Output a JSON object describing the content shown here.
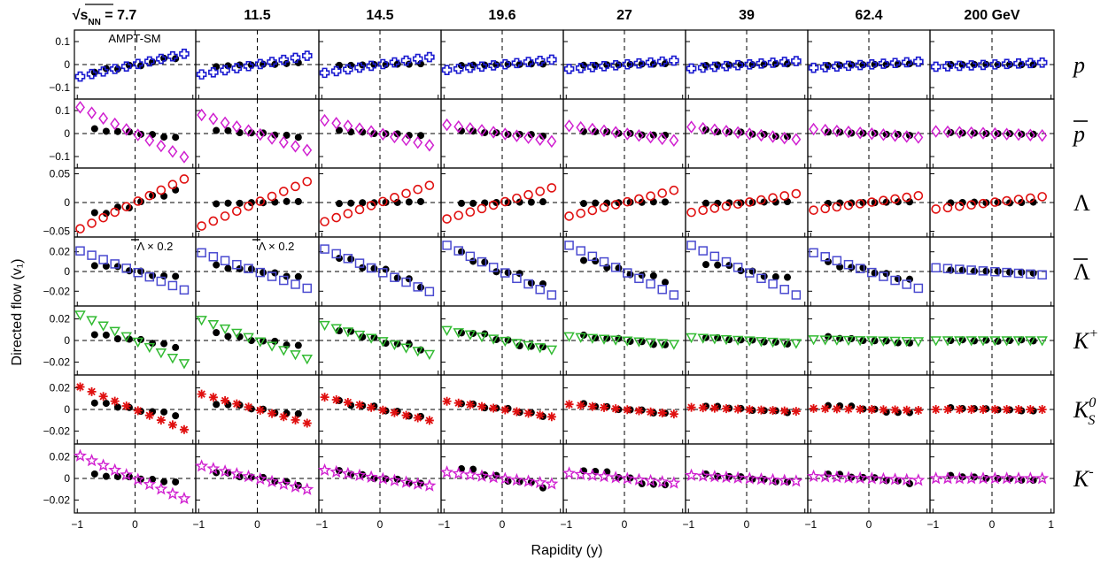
{
  "figure": {
    "ylabel": "Directed flow (v₁)",
    "xlabel": "Rapidity (y)",
    "energy_prefix": "√s",
    "energy_sub": "NN",
    "energy_suffix": " = 7.7",
    "energies": [
      "",
      "11.5",
      "14.5",
      "19.6",
      "27",
      "39",
      "62.4",
      "200 GeV"
    ],
    "model_label": "AMPT-SM",
    "lambdabar_scale_label": "Λ × 0.2",
    "x_tick_labels": [
      "−1",
      "0",
      "1"
    ],
    "species": [
      {
        "label": "p",
        "bar": false,
        "sup": "",
        "sub": "",
        "italic": true
      },
      {
        "label": "p",
        "bar": true,
        "sup": "",
        "sub": "",
        "italic": true
      },
      {
        "label": "Λ",
        "bar": false,
        "sup": "",
        "sub": "",
        "italic": false
      },
      {
        "label": "Λ",
        "bar": true,
        "sup": "",
        "sub": "",
        "italic": false
      },
      {
        "label": "K",
        "bar": false,
        "sup": "+",
        "sub": "",
        "italic": true
      },
      {
        "label": "K",
        "bar": false,
        "sup": "0",
        "sub": "S",
        "italic": true
      },
      {
        "label": "K",
        "bar": false,
        "sup": "-",
        "sub": "",
        "italic": true
      }
    ],
    "row_ytick_labels": [
      [
        "0.1",
        "0",
        "−0.1"
      ],
      [
        "0.1",
        "0",
        "−0.1"
      ],
      [
        "0.05",
        "0",
        "−0.05"
      ],
      [
        "0.02",
        "0",
        "−0.02"
      ],
      [
        "0.02",
        "0",
        "−0.02"
      ],
      [
        "0.02",
        "0",
        "−0.02"
      ],
      [
        "0.02",
        "0",
        "−0.02"
      ]
    ]
  },
  "chart_data": {
    "type": "scatter",
    "xlim": [
      -1.05,
      1.05
    ],
    "x_ticks": [
      -1,
      0,
      1
    ],
    "grid": false,
    "model_marker_color": "#000000",
    "rows": [
      {
        "ylim": [
          -0.15,
          0.15
        ],
        "y_ticks": [
          0.1,
          0,
          -0.1
        ],
        "marker": "cross",
        "color": "#1a1ad0",
        "style": "linear",
        "slope": [
          0.055,
          0.045,
          0.038,
          0.025,
          0.02,
          0.018,
          0.015,
          0.01
        ],
        "model_slope": [
          0.045,
          0.01,
          0.005,
          0.005,
          0.005,
          0.005,
          0.005,
          0.0
        ]
      },
      {
        "ylim": [
          -0.15,
          0.15
        ],
        "y_ticks": [
          0.1,
          0,
          -0.1
        ],
        "marker": "diamond",
        "color": "#d020d0",
        "style": "linear",
        "slope": [
          -0.12,
          -0.085,
          -0.06,
          -0.04,
          -0.035,
          -0.03,
          -0.02,
          -0.01
        ],
        "model_slope": [
          -0.025,
          -0.02,
          -0.015,
          -0.015,
          -0.015,
          -0.02,
          -0.01,
          -0.005
        ]
      },
      {
        "ylim": [
          -0.06,
          0.06
        ],
        "y_ticks": [
          0.05,
          0,
          -0.05
        ],
        "marker": "circle",
        "color": "#e01010",
        "style": "linear",
        "slope": [
          0.048,
          0.043,
          0.035,
          0.03,
          0.025,
          0.018,
          0.014,
          0.012
        ],
        "model_slope": [
          0.03,
          0.003,
          0.002,
          0.002,
          0.002,
          0.002,
          0.002,
          0.0
        ]
      },
      {
        "ylim": [
          -0.035,
          0.035
        ],
        "y_ticks": [
          0.02,
          0,
          -0.02
        ],
        "marker": "square",
        "color": "#4a4ad0",
        "style": "linear",
        "slope": [
          -0.022,
          -0.02,
          -0.024,
          -0.028,
          -0.028,
          -0.028,
          -0.02,
          -0.004
        ],
        "model_slope": [
          -0.01,
          -0.008,
          -0.02,
          -0.022,
          -0.015,
          -0.012,
          -0.012,
          -0.002
        ]
      },
      {
        "ylim": [
          -0.032,
          0.032
        ],
        "y_ticks": [
          0.02,
          0,
          -0.02
        ],
        "marker": "triangle",
        "color": "#33bb33",
        "style": "linear",
        "slope": [
          -0.025,
          -0.02,
          -0.015,
          -0.01,
          -0.004,
          -0.003,
          -0.001,
          0.0
        ],
        "model_slope": [
          -0.008,
          -0.008,
          -0.012,
          -0.012,
          -0.006,
          -0.004,
          -0.004,
          0.0
        ]
      },
      {
        "ylim": [
          -0.032,
          0.032
        ],
        "y_ticks": [
          0.02,
          0,
          -0.02
        ],
        "marker": "star",
        "color": "#e01010",
        "style": "linear",
        "slope": [
          -0.022,
          -0.015,
          -0.012,
          -0.008,
          -0.005,
          -0.002,
          -0.001,
          0.0
        ],
        "model_slope": [
          -0.008,
          -0.008,
          -0.01,
          -0.008,
          -0.006,
          -0.004,
          -0.006,
          -0.002
        ]
      },
      {
        "ylim": [
          -0.032,
          0.032
        ],
        "y_ticks": [
          0.02,
          0,
          -0.02
        ],
        "marker": "pentstar",
        "color": "#d020d0",
        "style": "linear",
        "slope": [
          -0.022,
          -0.012,
          -0.008,
          -0.006,
          -0.005,
          -0.003,
          -0.002,
          0.0
        ],
        "model_slope": [
          -0.005,
          -0.008,
          -0.008,
          -0.012,
          -0.012,
          -0.005,
          -0.006,
          -0.003
        ]
      }
    ],
    "x_points": [
      -0.95,
      -0.75,
      -0.55,
      -0.35,
      -0.15,
      0.05,
      0.25,
      0.45,
      0.65,
      0.85
    ]
  }
}
